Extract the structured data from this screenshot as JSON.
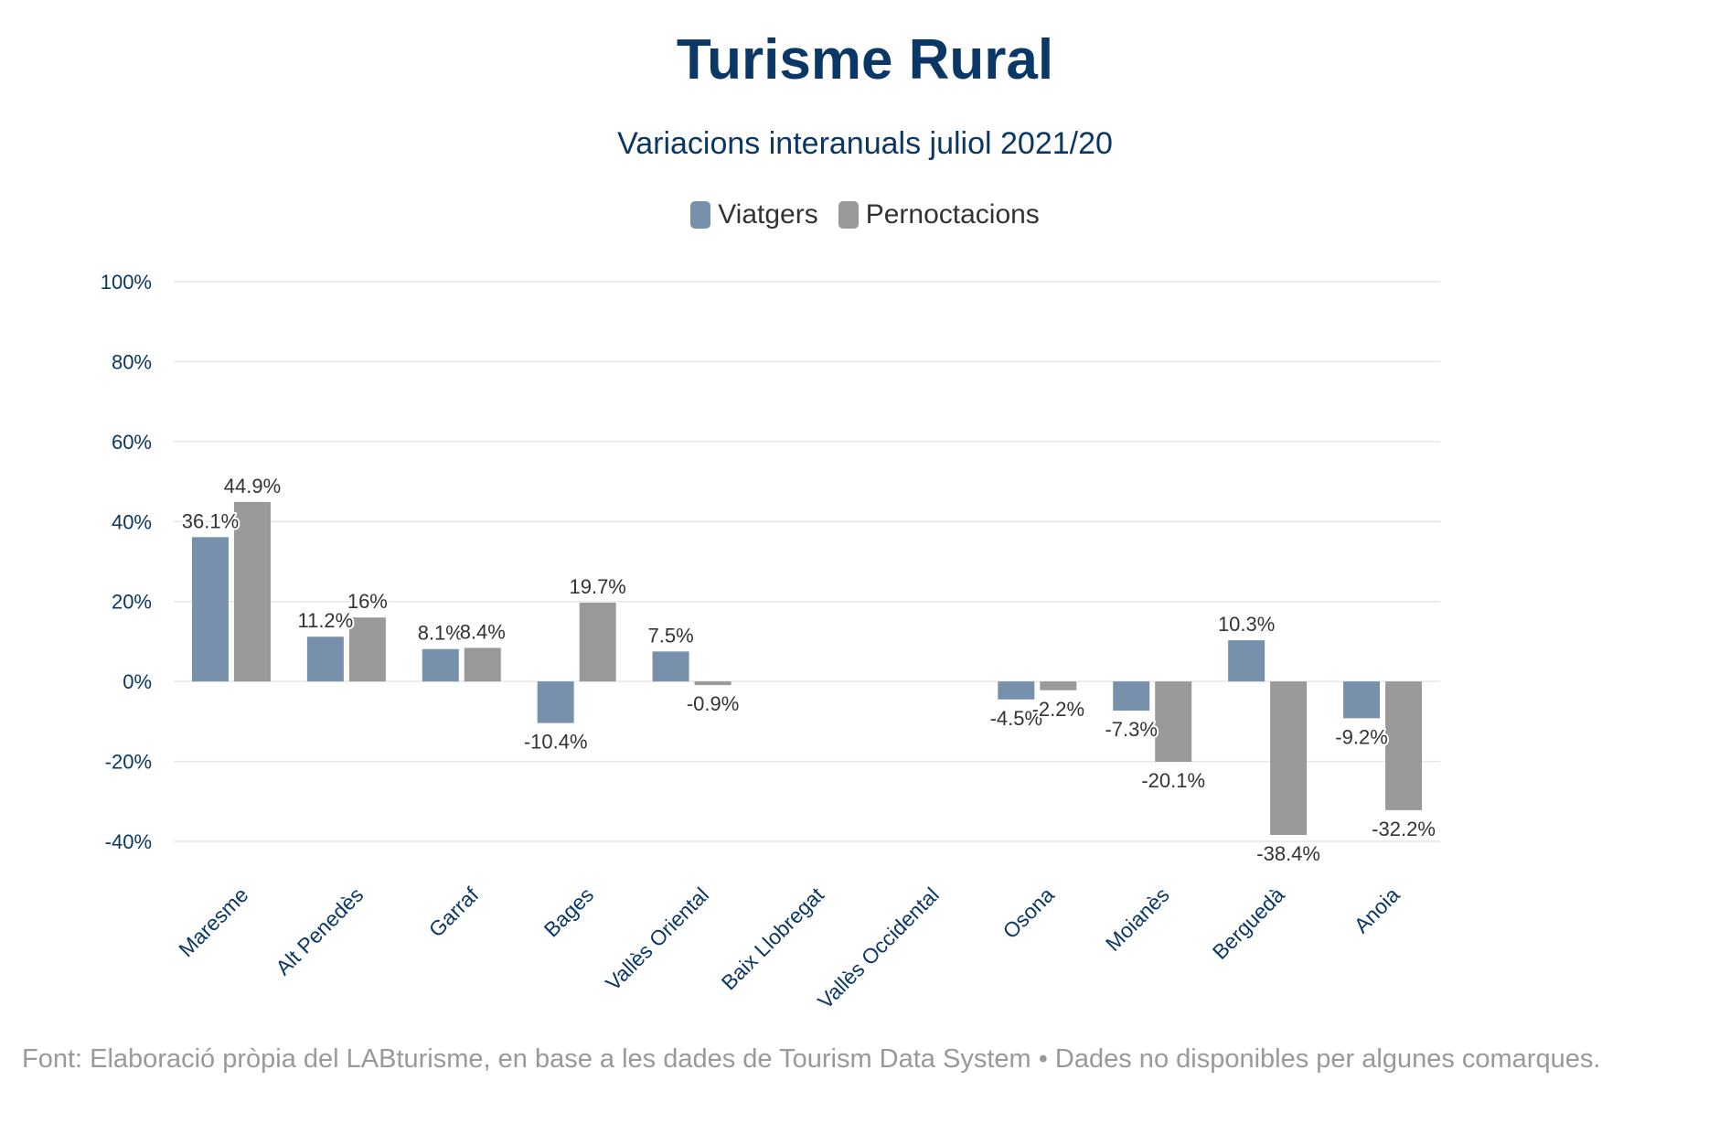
{
  "chart_data": {
    "type": "bar",
    "title": "Turisme Rural",
    "subtitle": "Variacions interanuals juliol 2021/20",
    "categories": [
      "Maresme",
      "Alt Penedès",
      "Garraf",
      "Bages",
      "Vallès Oriental",
      "Baix Llobregat",
      "Vallès Occidental",
      "Osona",
      "Moianès",
      "Berguedà",
      "Anoia"
    ],
    "series": [
      {
        "name": "Viatgers",
        "color": "#7791ad",
        "values": [
          36.1,
          11.2,
          8.1,
          -10.4,
          7.5,
          null,
          null,
          -4.5,
          -7.3,
          10.3,
          -9.2
        ],
        "labels": [
          "36.1%",
          "11.2%",
          "8.1%",
          "-10.4%",
          "7.5%",
          "",
          "",
          "-4.5%",
          "-7.3%",
          "10.3%",
          "-9.2%"
        ]
      },
      {
        "name": "Pernoctacions",
        "color": "#999999",
        "values": [
          44.9,
          16,
          8.4,
          19.7,
          -0.9,
          null,
          null,
          -2.2,
          -20.1,
          -38.4,
          -32.2
        ],
        "labels": [
          "44.9%",
          "16%",
          "8.4%",
          "19.7%",
          "-0.9%",
          "",
          "",
          "-2.2%",
          "-20.1%",
          "-38.4%",
          "-32.2%"
        ]
      }
    ],
    "ylim": [
      -40,
      100
    ],
    "yticks": [
      -40,
      -20,
      0,
      20,
      40,
      60,
      80,
      100
    ],
    "ytick_labels": [
      "-40%",
      "-20%",
      "0%",
      "20%",
      "40%",
      "60%",
      "80%",
      "100%"
    ],
    "grid": true,
    "legend": "top-center",
    "xlabel": "",
    "ylabel": ""
  },
  "footnote": "Font: Elaboració pròpia del LABturisme, en base a les dades de Tourism Data System • Dades no disponibles per algunes comarques.",
  "colors": {
    "title": "#0b3766",
    "axis_text": "#0b3766",
    "grid": "#e6e6e6",
    "footnote": "#999999"
  }
}
